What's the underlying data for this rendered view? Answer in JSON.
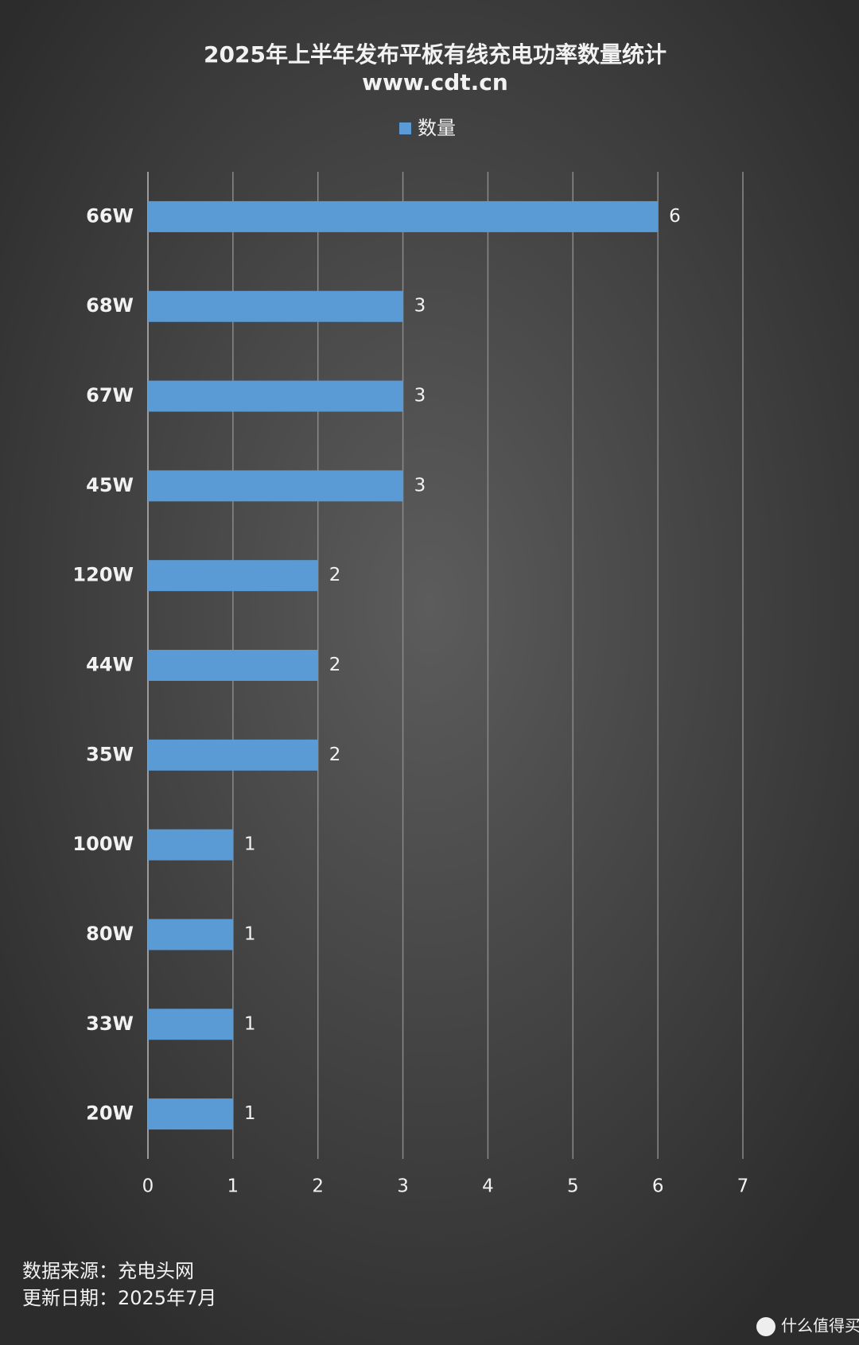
{
  "chart_data": {
    "type": "bar",
    "orientation": "horizontal",
    "title": "2025年上半年发布平板有线充电功率数量统计",
    "subtitle": "www.cdt.cn",
    "categories": [
      "66W",
      "68W",
      "67W",
      "45W",
      "120W",
      "44W",
      "35W",
      "100W",
      "80W",
      "33W",
      "20W"
    ],
    "series": [
      {
        "name": "数量",
        "color": "#5b9bd5",
        "values": [
          6,
          3,
          3,
          3,
          2,
          2,
          2,
          1,
          1,
          1,
          1
        ]
      }
    ],
    "xlim": [
      0,
      7
    ],
    "xticks": [
      0,
      1,
      2,
      3,
      4,
      5,
      6,
      7
    ],
    "grid": true,
    "legend": "top"
  },
  "footer": {
    "source": "数据来源：充电头网",
    "updated": "更新日期：2025年7月"
  },
  "watermark": "什么值得买"
}
